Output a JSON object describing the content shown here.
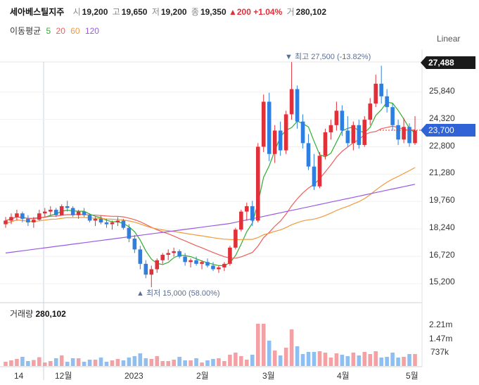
{
  "header": {
    "name": "세아베스틸지주",
    "open_label": "시",
    "open": "19,200",
    "high_label": "고",
    "high": "19,650",
    "low_label": "저",
    "low": "19,200",
    "close_label": "종",
    "close": "19,350",
    "change": "▲200 +1.04%",
    "volume_label": "거",
    "volume": "280,102"
  },
  "ma_legend": {
    "title": "이동평균",
    "items": [
      {
        "label": "5",
        "color": "#2fae2f"
      },
      {
        "label": "20",
        "color": "#ee5f5b"
      },
      {
        "label": "60",
        "color": "#f29a3a"
      },
      {
        "label": "120",
        "color": "#9b59e6"
      }
    ]
  },
  "scale_mode": "Linear",
  "price_axis": {
    "ticks": [
      "25,840",
      "24,320",
      "22,800",
      "21,280",
      "19,760",
      "18,240",
      "16,720",
      "15,200"
    ],
    "high_badge": "27,488",
    "current_badge": "23,700"
  },
  "annotations": {
    "max": "▼ 최고 27,500 (-13.82%)",
    "min": "▲ 최저 15,000 (58.00%)"
  },
  "volume": {
    "title": "거래량",
    "value": "280,102",
    "ticks": [
      "2.21m",
      "1.47m",
      "737k"
    ]
  },
  "x_axis": [
    "14",
    "12월",
    "2023",
    "2월",
    "3월",
    "4월",
    "5월"
  ],
  "colors": {
    "up": "#e0303a",
    "down": "#2f7fe0",
    "vol_up": "#f4a1a6",
    "vol_down": "#8fbff0"
  },
  "chart_data": {
    "type": "candlestick",
    "ohlc_sample": [
      [
        18500,
        18900,
        18300,
        18700
      ],
      [
        18700,
        19100,
        18500,
        18900
      ],
      [
        18900,
        19300,
        18700,
        19100
      ],
      [
        19100,
        19200,
        18600,
        18800
      ],
      [
        18800,
        19000,
        18400,
        18600
      ],
      [
        18600,
        18900,
        18300,
        18750
      ],
      [
        18750,
        19300,
        18700,
        19100
      ],
      [
        19100,
        19400,
        18900,
        19200
      ],
      [
        19200,
        19500,
        19000,
        19300
      ],
      [
        19300,
        19400,
        18900,
        19000
      ],
      [
        19000,
        19600,
        19000,
        19500
      ],
      [
        19500,
        19800,
        19200,
        19400
      ],
      [
        19400,
        19500,
        18900,
        19000
      ],
      [
        19000,
        19300,
        18800,
        19200
      ],
      [
        19200,
        19400,
        18900,
        19000
      ],
      [
        19000,
        19100,
        18600,
        18700
      ],
      [
        18700,
        18900,
        18400,
        18800
      ],
      [
        18800,
        19000,
        18500,
        18600
      ],
      [
        18600,
        18800,
        18300,
        18500
      ],
      [
        18500,
        18700,
        18200,
        18600
      ],
      [
        18600,
        18900,
        18400,
        18700
      ],
      [
        18700,
        18800,
        18200,
        18300
      ],
      [
        18300,
        18500,
        17500,
        17700
      ],
      [
        17700,
        17900,
        16900,
        17100
      ],
      [
        17100,
        17300,
        16000,
        16300
      ],
      [
        16300,
        16500,
        15500,
        15700
      ],
      [
        15700,
        16200,
        15000,
        16000
      ],
      [
        16000,
        16600,
        15800,
        16500
      ],
      [
        16500,
        16900,
        16300,
        16800
      ],
      [
        16800,
        17100,
        16500,
        16900
      ],
      [
        16900,
        17200,
        16700,
        17000
      ],
      [
        17000,
        17100,
        16600,
        16700
      ],
      [
        16700,
        16900,
        16200,
        16400
      ],
      [
        16400,
        16600,
        16100,
        16500
      ],
      [
        16500,
        16700,
        16200,
        16300
      ],
      [
        16300,
        16500,
        16000,
        16400
      ],
      [
        16400,
        16600,
        16100,
        16200
      ],
      [
        16200,
        16400,
        15900,
        16000
      ],
      [
        16000,
        16200,
        15800,
        16100
      ],
      [
        16100,
        16400,
        15900,
        16300
      ],
      [
        16300,
        17300,
        16200,
        17200
      ],
      [
        17200,
        18300,
        17100,
        18200
      ],
      [
        18200,
        19300,
        18100,
        19200
      ],
      [
        19200,
        19700,
        18700,
        19500
      ],
      [
        19500,
        19800,
        18400,
        18700
      ],
      [
        18700,
        23000,
        18600,
        22800
      ],
      [
        22800,
        25700,
        22500,
        25300
      ],
      [
        25300,
        25800,
        22000,
        22400
      ],
      [
        22400,
        24000,
        21900,
        23700
      ],
      [
        23700,
        24200,
        22300,
        22600
      ],
      [
        22600,
        24800,
        22400,
        24600
      ],
      [
        24600,
        27500,
        24300,
        26000
      ],
      [
        26000,
        26200,
        23800,
        24200
      ],
      [
        24200,
        24600,
        22700,
        23000
      ],
      [
        23000,
        23500,
        21500,
        21700
      ],
      [
        21700,
        22400,
        20400,
        20600
      ],
      [
        20600,
        22500,
        20500,
        22300
      ],
      [
        22300,
        23800,
        22100,
        23600
      ],
      [
        23600,
        24300,
        23200,
        24000
      ],
      [
        24000,
        25300,
        23700,
        24800
      ],
      [
        24800,
        25100,
        23400,
        23700
      ],
      [
        23700,
        24500,
        22800,
        23000
      ],
      [
        23000,
        24200,
        22600,
        24000
      ],
      [
        24000,
        24300,
        22700,
        22900
      ],
      [
        22900,
        24500,
        22800,
        24300
      ],
      [
        24300,
        25500,
        24000,
        25200
      ],
      [
        25200,
        26800,
        25000,
        26300
      ],
      [
        26300,
        27300,
        25200,
        25600
      ],
      [
        25600,
        26000,
        24700,
        25000
      ],
      [
        25000,
        25200,
        23700,
        24000
      ],
      [
        24000,
        24300,
        22900,
        23200
      ],
      [
        23200,
        24400,
        23000,
        23900
      ],
      [
        23900,
        24100,
        22800,
        23000
      ],
      [
        23000,
        24500,
        22900,
        23700
      ]
    ]
  }
}
